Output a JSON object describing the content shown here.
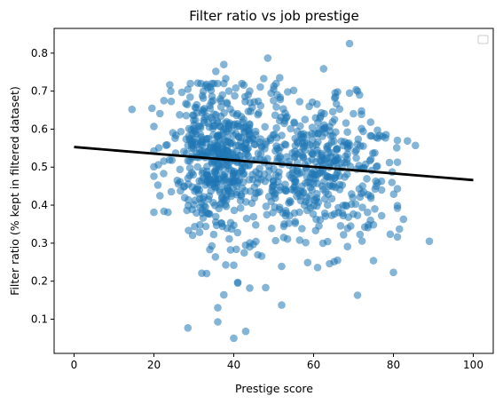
{
  "chart_data": {
    "type": "scatter",
    "title": "Filter ratio vs job prestige",
    "xlabel": "Prestige score",
    "ylabel": "Filter ratio (% kept in filtered dataset)",
    "xlim": [
      -5,
      105
    ],
    "ylim": [
      0.01,
      0.865
    ],
    "xticks": [
      0,
      20,
      40,
      60,
      80,
      100
    ],
    "yticks": [
      0.1,
      0.2,
      0.3,
      0.4,
      0.5,
      0.6,
      0.7,
      0.8
    ],
    "grid": false,
    "legend": {
      "location": "top-right",
      "entries": []
    },
    "marker_color": "#1f77b4",
    "marker_alpha": 0.55,
    "trendline": {
      "x": [
        0,
        100
      ],
      "y": [
        0.553,
        0.466
      ],
      "color": "#000000"
    },
    "scatter_summary": {
      "n_points": 1000,
      "x_center": 50,
      "x_spread": 14,
      "x_min": 14,
      "x_max": 89,
      "y_center": 0.51,
      "y_spread": 0.11,
      "y_min": 0.05,
      "y_max": 0.83
    },
    "points": [
      [
        14.5,
        0.652
      ],
      [
        19.5,
        0.655
      ],
      [
        21.5,
        0.641
      ],
      [
        22.5,
        0.675
      ],
      [
        21,
        0.453
      ],
      [
        21.5,
        0.425
      ],
      [
        22.5,
        0.384
      ],
      [
        22.5,
        0.516
      ],
      [
        24.5,
        0.518
      ],
      [
        27,
        0.697
      ],
      [
        28.5,
        0.705
      ],
      [
        31,
        0.721
      ],
      [
        28.5,
        0.077
      ],
      [
        36,
        0.093
      ],
      [
        40,
        0.05
      ],
      [
        43,
        0.068
      ],
      [
        37.5,
        0.164
      ],
      [
        36,
        0.13
      ],
      [
        41,
        0.197
      ],
      [
        41,
        0.195
      ],
      [
        44,
        0.182
      ],
      [
        48,
        0.183
      ],
      [
        52,
        0.137
      ],
      [
        32,
        0.221
      ],
      [
        34,
        0.283
      ],
      [
        34.5,
        0.293
      ],
      [
        38,
        0.243
      ],
      [
        40,
        0.242
      ],
      [
        44,
        0.29
      ],
      [
        47,
        0.266
      ],
      [
        52,
        0.239
      ],
      [
        58.5,
        0.249
      ],
      [
        61,
        0.236
      ],
      [
        64,
        0.246
      ],
      [
        66,
        0.255
      ],
      [
        71,
        0.163
      ],
      [
        75,
        0.254
      ],
      [
        80,
        0.223
      ],
      [
        81.5,
        0.337
      ],
      [
        82.5,
        0.363
      ],
      [
        89,
        0.305
      ],
      [
        85.5,
        0.557
      ],
      [
        83.5,
        0.569
      ],
      [
        79,
        0.512
      ],
      [
        77,
        0.463
      ],
      [
        76,
        0.458
      ],
      [
        69,
        0.825
      ],
      [
        48.5,
        0.787
      ],
      [
        37.5,
        0.77
      ],
      [
        35.5,
        0.752
      ],
      [
        38,
        0.733
      ],
      [
        47.5,
        0.733
      ],
      [
        51.5,
        0.735
      ],
      [
        62.5,
        0.759
      ],
      [
        34.5,
        0.72
      ],
      [
        40.5,
        0.708
      ],
      [
        42.5,
        0.716
      ],
      [
        44,
        0.7
      ],
      [
        50,
        0.705
      ],
      [
        53.5,
        0.698
      ],
      [
        55,
        0.702
      ],
      [
        66,
        0.698
      ],
      [
        69,
        0.695
      ],
      [
        71,
        0.7
      ],
      [
        71.5,
        0.69
      ],
      [
        66.5,
        0.653
      ],
      [
        72,
        0.648
      ],
      [
        74.5,
        0.582
      ],
      [
        78,
        0.577
      ],
      [
        76,
        0.597
      ],
      [
        27.5,
        0.448
      ],
      [
        26.5,
        0.494
      ],
      [
        25.5,
        0.584
      ],
      [
        27.5,
        0.541
      ],
      [
        28.5,
        0.557
      ],
      [
        33,
        0.344
      ],
      [
        30,
        0.401
      ],
      [
        33.5,
        0.378
      ],
      [
        37,
        0.352
      ],
      [
        45.5,
        0.348
      ],
      [
        49.5,
        0.339
      ],
      [
        52.5,
        0.315
      ],
      [
        56.5,
        0.308
      ],
      [
        60.5,
        0.333
      ],
      [
        63.5,
        0.304
      ],
      [
        67.5,
        0.322
      ],
      [
        68.5,
        0.339
      ],
      [
        71,
        0.373
      ],
      [
        73.5,
        0.381
      ],
      [
        70.5,
        0.403
      ]
    ]
  }
}
